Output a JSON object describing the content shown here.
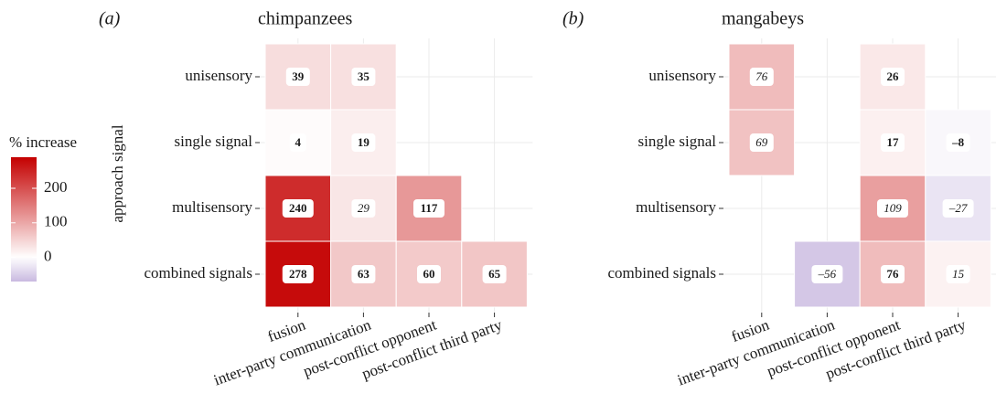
{
  "colorbar": {
    "title": "% increase",
    "lim": [
      -70,
      290
    ],
    "ticks": [
      0,
      100,
      200
    ],
    "low": "#c9b9e0",
    "mid": "#ffffff",
    "high": "#c40000"
  },
  "chart_data": [
    {
      "type": "heatmap",
      "panel": "(a)",
      "title": "chimpanzees",
      "y_label": "approach signal",
      "x_categories": [
        "fusion",
        "inter-party communication",
        "post-conflict opponent",
        "post-conflict third party"
      ],
      "y_categories": [
        "unisensory",
        "single signal",
        "multisensory",
        "combined signals"
      ],
      "values": [
        [
          39,
          35,
          null,
          null
        ],
        [
          4,
          19,
          null,
          null
        ],
        [
          240,
          29,
          117,
          null
        ],
        [
          278,
          63,
          60,
          65
        ]
      ],
      "label_style": [
        [
          "bold",
          "bold",
          null,
          null
        ],
        [
          "bold",
          "bold",
          null,
          null
        ],
        [
          "bold",
          "italic",
          "bold",
          null
        ],
        [
          "bold",
          "bold",
          "bold",
          "bold"
        ]
      ]
    },
    {
      "type": "heatmap",
      "panel": "(b)",
      "title": "mangabeys",
      "x_categories": [
        "fusion",
        "inter-party communication",
        "post-conflict opponent",
        "post-conflict third party"
      ],
      "y_categories": [
        "unisensory",
        "single signal",
        "multisensory",
        "combined signals"
      ],
      "values": [
        [
          76,
          null,
          26,
          null
        ],
        [
          69,
          null,
          17,
          -8
        ],
        [
          null,
          null,
          109,
          -27
        ],
        [
          null,
          -56,
          76,
          15
        ]
      ],
      "value_labels": [
        [
          "76",
          null,
          "26",
          null
        ],
        [
          "69",
          null,
          "17",
          "–8"
        ],
        [
          null,
          null,
          "109",
          "–27"
        ],
        [
          null,
          "–56",
          "76",
          "15"
        ]
      ],
      "label_style": [
        [
          "italic",
          null,
          "bold",
          null
        ],
        [
          "italic",
          null,
          "bold",
          "bold"
        ],
        [
          null,
          null,
          "italic",
          "italic"
        ],
        [
          null,
          "italic",
          "bold",
          "italic"
        ]
      ]
    }
  ]
}
